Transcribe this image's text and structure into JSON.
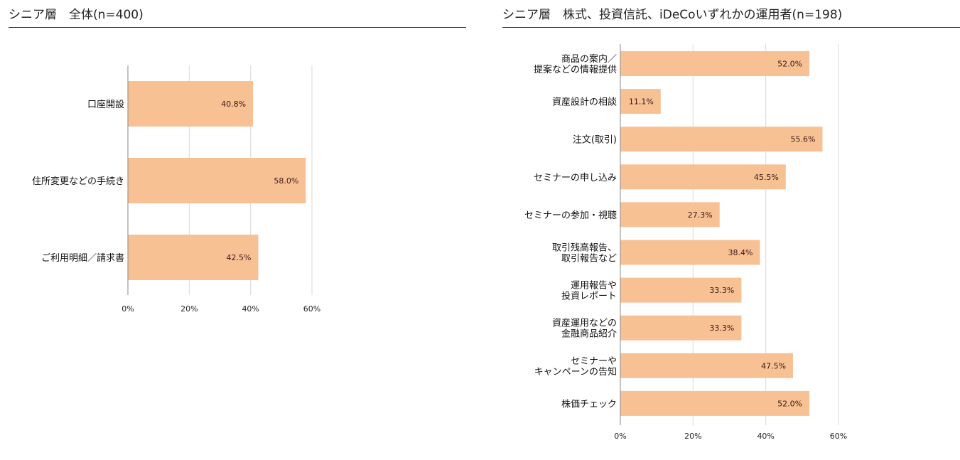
{
  "colors": {
    "bar": "#F8C194",
    "grid": "#d9d9d9",
    "axis": "#888888",
    "value_text": "#3a1818"
  },
  "chart_data": [
    {
      "type": "bar",
      "orientation": "horizontal",
      "title": "シニア層　全体(n=400)",
      "categories": [
        [
          "口座開設"
        ],
        [
          "住所変更などの手続き"
        ],
        [
          "ご利用明細／請求書"
        ]
      ],
      "values": [
        40.8,
        58.0,
        42.5
      ],
      "value_labels": [
        "40.8%",
        "58.0%",
        "42.5%"
      ],
      "xlim": [
        0,
        60
      ],
      "xticks": [
        0,
        20,
        40,
        60
      ],
      "xtick_labels": [
        "0%",
        "20%",
        "40%",
        "60%"
      ],
      "grid": true,
      "xlabel": "",
      "ylabel": ""
    },
    {
      "type": "bar",
      "orientation": "horizontal",
      "title": "シニア層　株式、投資信託、iDeCoいずれかの運用者(n=198)",
      "categories": [
        [
          "商品の案内／",
          "提案などの情報提供"
        ],
        [
          "資産設計の相談"
        ],
        [
          "注文(取引)"
        ],
        [
          "セミナーの申し込み"
        ],
        [
          "セミナーの参加・視聴"
        ],
        [
          "取引残高報告、",
          "取引報告など"
        ],
        [
          "運用報告や",
          "投資レポート"
        ],
        [
          "資産運用などの",
          "金融商品紹介"
        ],
        [
          "セミナーや",
          "キャンペーンの告知"
        ],
        [
          "株価チェック"
        ]
      ],
      "values": [
        52.0,
        11.1,
        55.6,
        45.5,
        27.3,
        38.4,
        33.3,
        33.3,
        47.5,
        52.0
      ],
      "value_labels": [
        "52.0%",
        "11.1%",
        "55.6%",
        "45.5%",
        "27.3%",
        "38.4%",
        "33.3%",
        "33.3%",
        "47.5%",
        "52.0%"
      ],
      "xlim": [
        0,
        60
      ],
      "xticks": [
        0,
        20,
        40,
        60
      ],
      "xtick_labels": [
        "0%",
        "20%",
        "40%",
        "60%"
      ],
      "grid": true,
      "xlabel": "",
      "ylabel": ""
    }
  ]
}
